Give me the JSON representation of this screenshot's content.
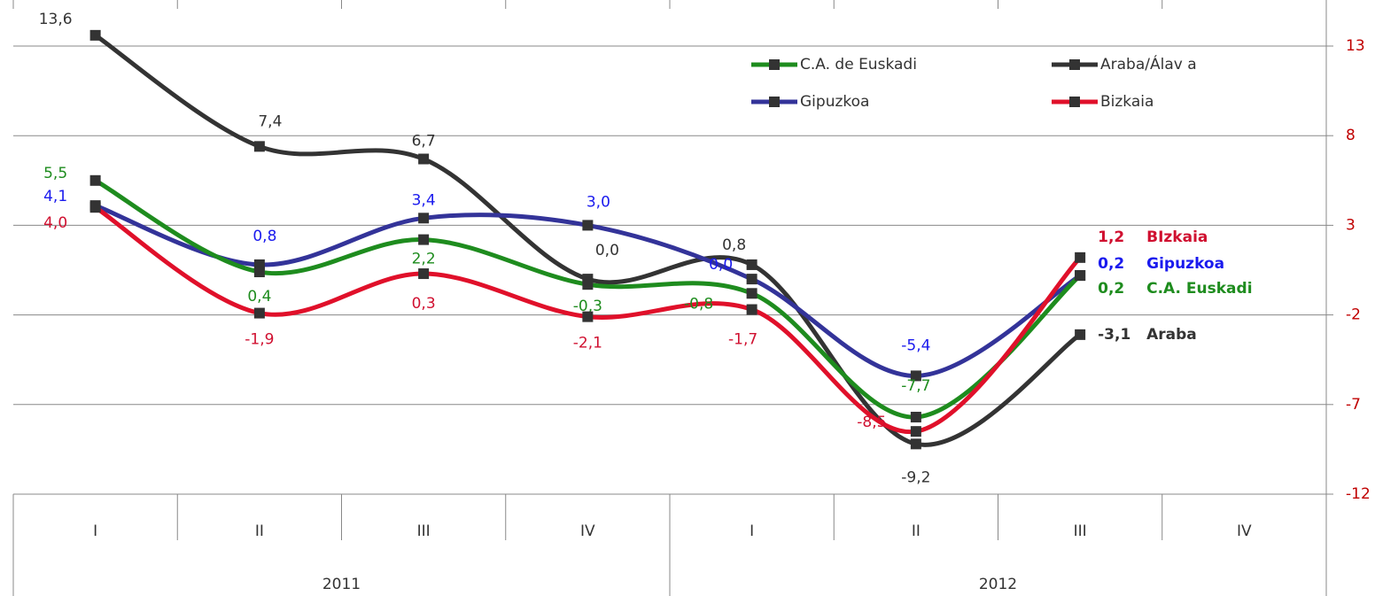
{
  "chart_data": {
    "type": "line",
    "categories": [
      "I",
      "II",
      "III",
      "IV",
      "I",
      "II",
      "III",
      "IV"
    ],
    "groups": [
      {
        "label": "2011",
        "span": 4
      },
      {
        "label": "2012",
        "span": 4
      }
    ],
    "series": [
      {
        "name": "C.A. de Euskadi",
        "color": "#1e8c1e",
        "label_color": "#1e8c1e",
        "end_label": "C.A. Euskadi",
        "values": [
          5.5,
          0.4,
          2.2,
          -0.3,
          -0.8,
          -7.7,
          0.2,
          null
        ],
        "value_labels": [
          "5,5",
          "0,4",
          "2,2",
          "-0,3",
          "-0,8",
          "-7,7",
          "0,2",
          null
        ]
      },
      {
        "name": "Araba/Álav a",
        "color": "#333333",
        "label_color": "#333333",
        "end_label": "Araba",
        "values": [
          13.6,
          7.4,
          6.7,
          0.0,
          0.8,
          -9.2,
          -3.1,
          null
        ],
        "value_labels": [
          "13,6",
          "7,4",
          "6,7",
          "0,0",
          "0,8",
          "-9,2",
          "-3,1",
          null
        ]
      },
      {
        "name": "Gipuzkoa",
        "color": "#333399",
        "label_color": "#1a1aee",
        "end_label": "Gipuzkoa",
        "values": [
          4.1,
          0.8,
          3.4,
          3.0,
          0.0,
          -5.4,
          0.2,
          null
        ],
        "value_labels": [
          "4,1",
          "0,8",
          "3,4",
          "3,0",
          "0,0",
          "-5,4",
          "0,2",
          null
        ]
      },
      {
        "name": "Bizkaia",
        "color": "#e0102a",
        "label_color": "#d01030",
        "end_label": "BIzkaia",
        "values": [
          4.0,
          -1.9,
          0.3,
          -2.1,
          -1.7,
          -8.5,
          1.2,
          null
        ],
        "value_labels": [
          "4,0",
          "-1,9",
          "0,3",
          "-2,1",
          "-1,7",
          "-8,5",
          "1,2",
          null
        ]
      }
    ],
    "ylim": [
      -12,
      13.6
    ],
    "yticks": [
      -12,
      -7,
      -2,
      3,
      8,
      13
    ],
    "grid": true
  }
}
